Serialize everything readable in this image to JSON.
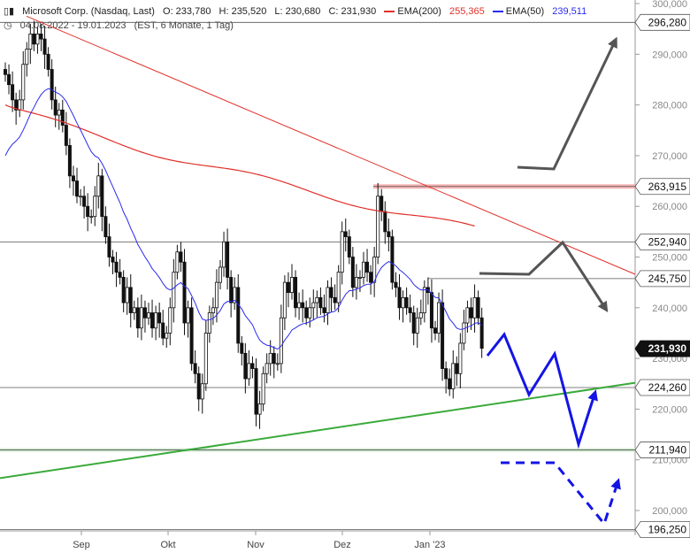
{
  "header": {
    "icon": "candlestick-icon",
    "instrument": "Microsoft Corp. (Nasdaq, Last)",
    "open": "O: 233,780",
    "high": "H: 235,520",
    "low": "L: 230,680",
    "close": "C: 231,930",
    "ema200_label": "EMA(200)",
    "ema200_value": "255,365",
    "ema50_label": "EMA(50)",
    "ema50_value": "239,511",
    "clock_icon": "clock-icon",
    "range": "04.08.2022 - 19.01.2023",
    "meta": "(EST, 6 Monate, 1 Tag)"
  },
  "colors": {
    "ema200": "#e0302a",
    "ema50": "#2a2af0",
    "support": "#3aaa3a",
    "scenario_up": "#555555",
    "scenario_down": "#1414e6",
    "resistance_zone": "#f2a0a0"
  },
  "chart_data": {
    "type": "candlestick",
    "y_axis": {
      "min": 196,
      "max": 302,
      "ticks": [
        200,
        210,
        220,
        230,
        240,
        250,
        260,
        270,
        280,
        290,
        300
      ],
      "tick_labels": [
        "200,000",
        "210,000",
        "220,000",
        "230,000",
        "240,000",
        "250,000",
        "260,000",
        "270,000",
        "280,000",
        "290,000",
        "300,000"
      ]
    },
    "x_axis": {
      "labels": [
        "Sep",
        "Okt",
        "Nov",
        "Dez",
        "Jan '23"
      ]
    },
    "price_levels": [
      {
        "label": "296,280",
        "value": 296.28
      },
      {
        "label": "263,915",
        "value": 263.915
      },
      {
        "label": "252,940",
        "value": 252.94
      },
      {
        "label": "245,750",
        "value": 245.75
      },
      {
        "label": "231,930",
        "value": 231.93,
        "current": true
      },
      {
        "label": "224,260",
        "value": 224.26
      },
      {
        "label": "211,940",
        "value": 211.94
      },
      {
        "label": "196,250",
        "value": 196.25
      }
    ],
    "closes": [
      286,
      284,
      281,
      279,
      281,
      288,
      291,
      294,
      292,
      294,
      293,
      290,
      287,
      281,
      278,
      279,
      276,
      272,
      266,
      265,
      262,
      262,
      260,
      258,
      258,
      262,
      266,
      258,
      254,
      250,
      249,
      247,
      246,
      241,
      244,
      239,
      240,
      236,
      240,
      238,
      239,
      236,
      239,
      237,
      234,
      235,
      240,
      247,
      251,
      249,
      237,
      240,
      229,
      227,
      222,
      225,
      235,
      239,
      240,
      245,
      248,
      253,
      246,
      241,
      244,
      233,
      231,
      226,
      229,
      228,
      219,
      221,
      227,
      229,
      231,
      229,
      229,
      238,
      245,
      243,
      246,
      240,
      241,
      240,
      238,
      240,
      241,
      242,
      240,
      239,
      244,
      242,
      241,
      247,
      255,
      254,
      250,
      244,
      246,
      246,
      249,
      247,
      245,
      250,
      262,
      259,
      255,
      254,
      245,
      244,
      240,
      242,
      240,
      239,
      235,
      238,
      239,
      244,
      243,
      236,
      235,
      241,
      228,
      226,
      224,
      229,
      227,
      233,
      237,
      240,
      238,
      242,
      238,
      232
    ],
    "overlays": {
      "ema200": {
        "name": "EMA(200)",
        "from": 280,
        "to": 255.4
      },
      "ema50": {
        "name": "EMA(50)",
        "to": 239.5
      },
      "resistance_trendline": {
        "from": 297.5,
        "to": 246.6
      },
      "support_trendline": {
        "from": 206.4,
        "to": 225.2
      },
      "resistance_zone": {
        "value": 263.915
      }
    },
    "scenarios": {
      "bullish": [
        [
          269,
          268
        ],
        [
          252,
          268
        ],
        [
          245,
          270
        ],
        [
          245,
          261
        ],
        [
          253,
          258
        ],
        [
          245,
          258
        ],
        [
          290,
          239
        ]
      ],
      "bearish": [
        [
          233,
          216
        ],
        [
          236,
          225
        ],
        [
          240,
          231
        ],
        [
          241,
          227
        ],
        [
          248,
          244
        ],
        [
          252,
          208
        ],
        [
          212,
          244
        ],
        [
          216,
          268
        ],
        [
          200,
          286
        ]
      ]
    }
  }
}
